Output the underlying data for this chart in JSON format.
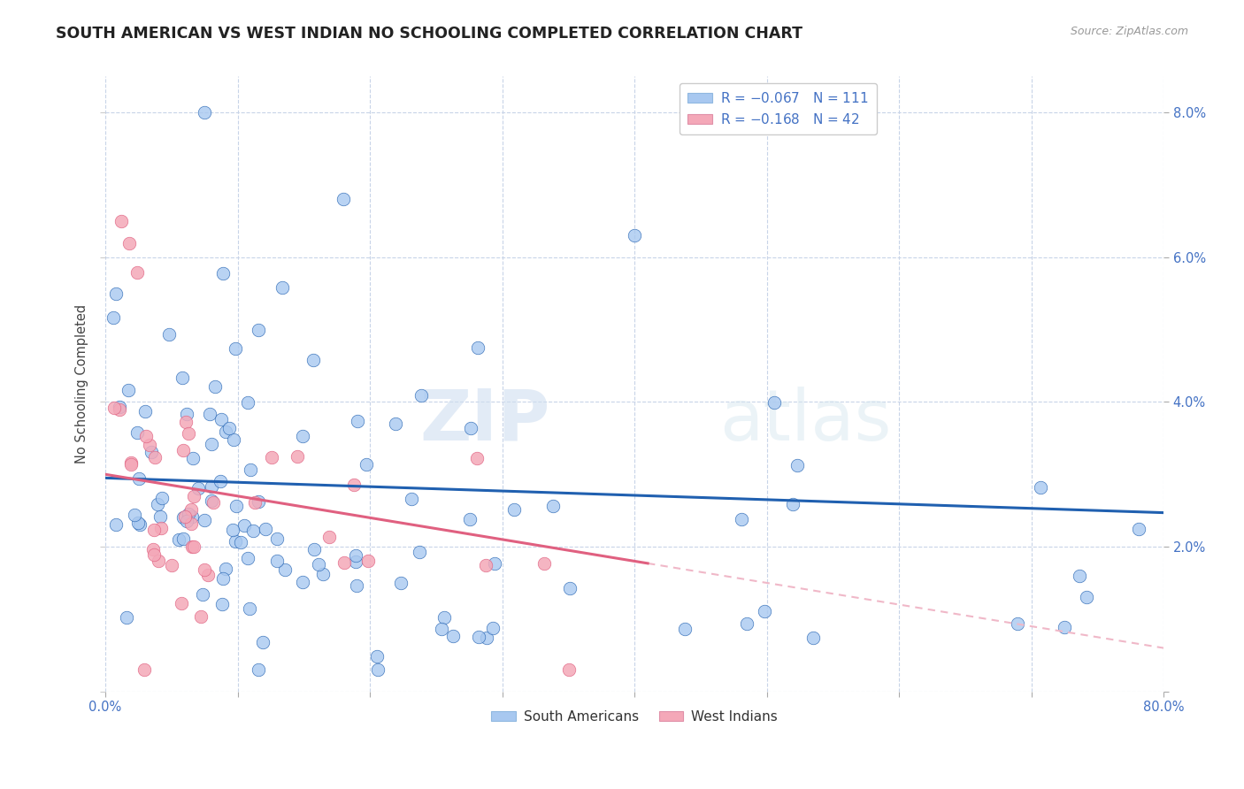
{
  "title": "SOUTH AMERICAN VS WEST INDIAN NO SCHOOLING COMPLETED CORRELATION CHART",
  "source": "Source: ZipAtlas.com",
  "ylabel": "No Schooling Completed",
  "xlim": [
    0.0,
    0.8
  ],
  "ylim": [
    0.0,
    0.085
  ],
  "blue_color": "#a8c8f0",
  "pink_color": "#f4a8b8",
  "blue_line_color": "#2060b0",
  "pink_line_color": "#e06080",
  "pink_dash_color": "#f0b8c8",
  "watermark_zip": "ZIP",
  "watermark_atlas": "atlas",
  "title_fontsize": 12.5,
  "source_fontsize": 9,
  "R_sa": -0.067,
  "N_sa": 111,
  "R_wi": -0.168,
  "N_wi": 42,
  "sa_seed": 42,
  "wi_seed": 7
}
